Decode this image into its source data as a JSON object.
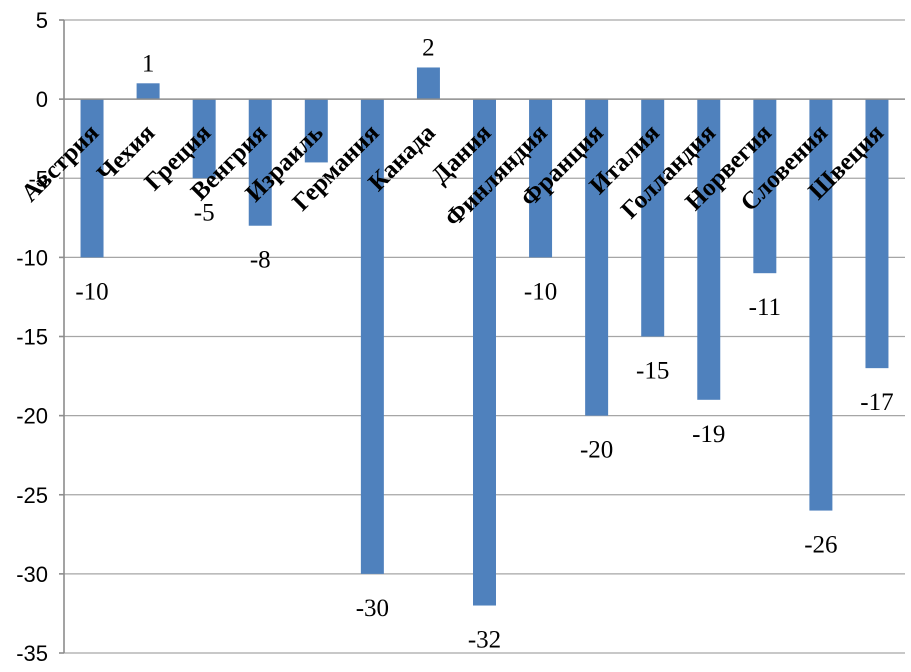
{
  "chart_data": {
    "type": "bar",
    "title": "",
    "xlabel": "",
    "ylabel": "",
    "categories": [
      "Австрия",
      "Чехия",
      "Греция",
      "Венгрия",
      "Израиль",
      "Германия",
      "Канада",
      "Дания",
      "Финляндия",
      "Франция",
      "Италия",
      "Голландия",
      "Норвегия",
      "Словения",
      "Швеция"
    ],
    "values": [
      -10,
      1,
      -5,
      -8,
      -4,
      -30,
      2,
      -32,
      -10,
      -20,
      -15,
      -19,
      -11,
      -26,
      -17
    ],
    "data_labels": [
      "-10",
      "1",
      "-5",
      "-8",
      "",
      "-30",
      "2",
      "-32",
      "-10",
      "-20",
      "-15",
      "-19",
      "-11",
      "-26",
      "-17"
    ],
    "ylim": [
      -35,
      5
    ],
    "yticks": [
      5,
      0,
      -5,
      -10,
      -15,
      -20,
      -25,
      -30,
      -35
    ],
    "grid": true,
    "legend": "none",
    "bar_color": "#4f81bd"
  }
}
